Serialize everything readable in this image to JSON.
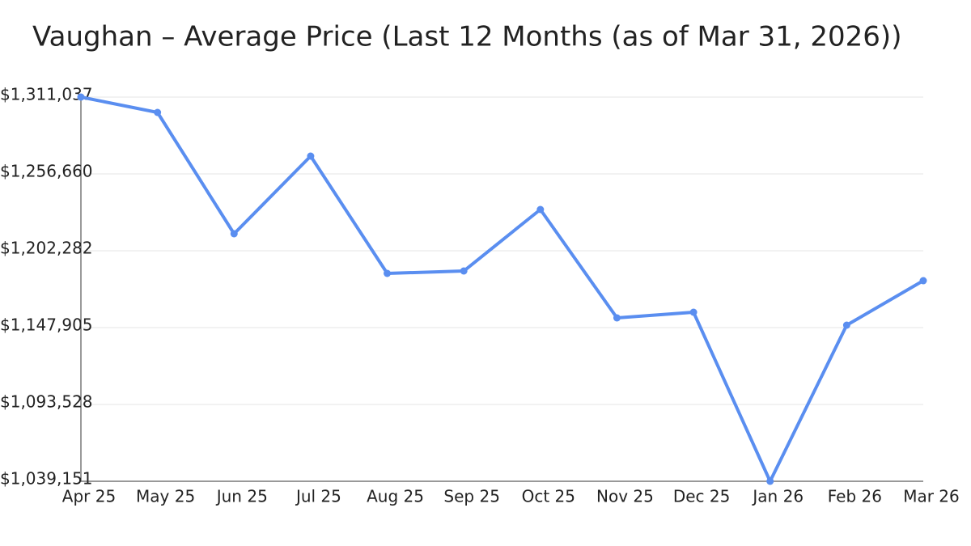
{
  "chart_data": {
    "type": "line",
    "title": "Vaughan – Average Price (Last 12 Months (as of Mar 31, 2026))",
    "categories": [
      "Apr 25",
      "May 25",
      "Jun 25",
      "Jul 25",
      "Aug 25",
      "Sep 25",
      "Oct 25",
      "Nov 25",
      "Dec 25",
      "Jan 26",
      "Feb 26",
      "Mar 26"
    ],
    "series": [
      {
        "name": "Average Price",
        "color": "#5a8ef0",
        "values": [
          1311037,
          1300161,
          1214301,
          1269252,
          1186254,
          1187971,
          1231473,
          1154772,
          1158779,
          1039151,
          1149620,
          1181102
        ]
      }
    ],
    "ylim": [
      1039151,
      1311037
    ],
    "yticks": [
      {
        "value": 1039151,
        "label": "$1,039,151"
      },
      {
        "value": 1093528,
        "label": "$1,093,528"
      },
      {
        "value": 1147905,
        "label": "$1,147,905"
      },
      {
        "value": 1202282,
        "label": "$1,202,282"
      },
      {
        "value": 1256660,
        "label": "$1,256,660"
      },
      {
        "value": 1311037,
        "label": "$1,311,037"
      }
    ],
    "grid": true
  }
}
